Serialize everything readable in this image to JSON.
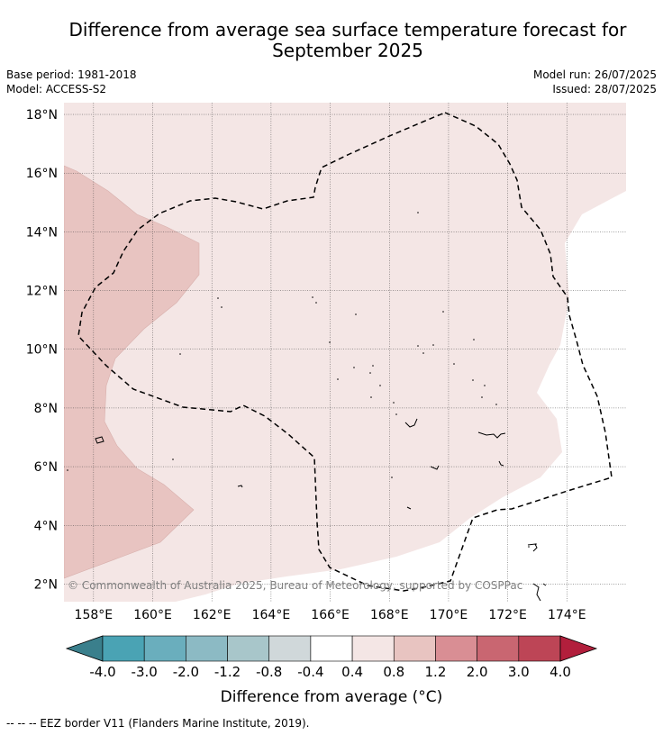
{
  "title_line1": "Difference from average sea surface temperature forecast for",
  "title_line2": "September 2025",
  "base_period": "Base period: 1981-2018",
  "model": "Model: ACCESS-S2",
  "model_run": "Model run: 26/07/2025",
  "issued": "Issued: 28/07/2025",
  "copyright": "© Commonwealth of Australia 2025, Bureau of Meteorology, supported by COSPPac",
  "colorbar_title": "Difference from average (°C)",
  "footer": "--  --  -- EEZ border V11 (Flanders Marine Institute, 2019).",
  "map": {
    "lat_ticks": [
      "2°N",
      "4°N",
      "6°N",
      "8°N",
      "10°N",
      "12°N",
      "14°N",
      "16°N",
      "18°N"
    ],
    "lon_ticks": [
      "158°E",
      "160°E",
      "162°E",
      "164°E",
      "166°E",
      "168°E",
      "170°E",
      "172°E",
      "174°E"
    ],
    "lon_range": [
      157,
      176
    ],
    "lat_range": [
      1.4,
      18.4
    ],
    "grid": true
  },
  "colorbar": {
    "labels": [
      "-4.0",
      "-3.0",
      "-2.0",
      "-1.2",
      "-0.8",
      "-0.4",
      "0.4",
      "0.8",
      "1.2",
      "2.0",
      "3.0",
      "4.0"
    ],
    "colors": [
      "#4aa3b4",
      "#6aaebd",
      "#8cbac4",
      "#a8c6ca",
      "#d0d8da",
      "#ffffff",
      "#f4e6e5",
      "#e8c4c1",
      "#d98e94",
      "#c96671",
      "#bd4556"
    ],
    "under_color": "#3a7f8c",
    "over_color": "#b21f3c"
  },
  "chart_data": {
    "type": "heatmap",
    "title": "Difference from average sea surface temperature forecast for September 2025",
    "variable": "Difference from average (°C)",
    "regions": [
      {
        "range": "0.4 to 0.8",
        "color": "#f4e6e5",
        "extent": "most of the map domain"
      },
      {
        "range": "0.8 to 1.2",
        "color": "#e8c4c1",
        "extent": "western edge, west of about 159°E–161°E"
      },
      {
        "range": "-0.4 to 0.4",
        "color": "#ffffff",
        "extent": "eastern portion, east of about 173°E south of 15°N"
      }
    ]
  }
}
